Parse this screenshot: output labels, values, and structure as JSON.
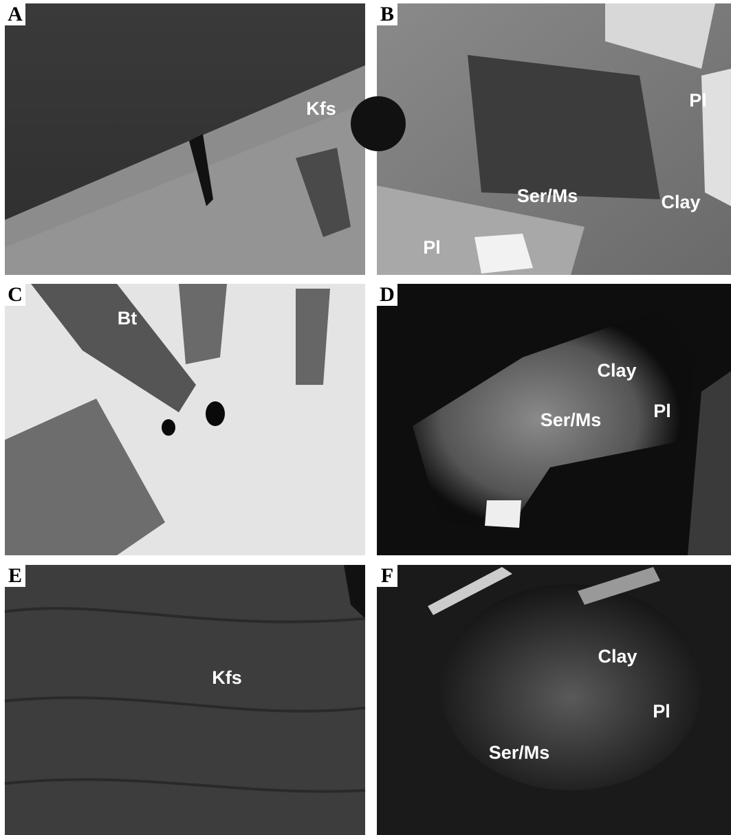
{
  "panels": [
    {
      "letter": "A",
      "labels": [
        "Kfs"
      ]
    },
    {
      "letter": "B",
      "labels": [
        "Pl",
        "Ser/Ms",
        "Clay",
        "Pl"
      ]
    },
    {
      "letter": "C",
      "labels": [
        "Bt"
      ]
    },
    {
      "letter": "D",
      "labels": [
        "Clay",
        "Pl",
        "Ser/Ms"
      ]
    },
    {
      "letter": "E",
      "labels": [
        "Kfs"
      ]
    },
    {
      "letter": "F",
      "labels": [
        "Clay",
        "Pl",
        "Ser/Ms"
      ]
    }
  ]
}
